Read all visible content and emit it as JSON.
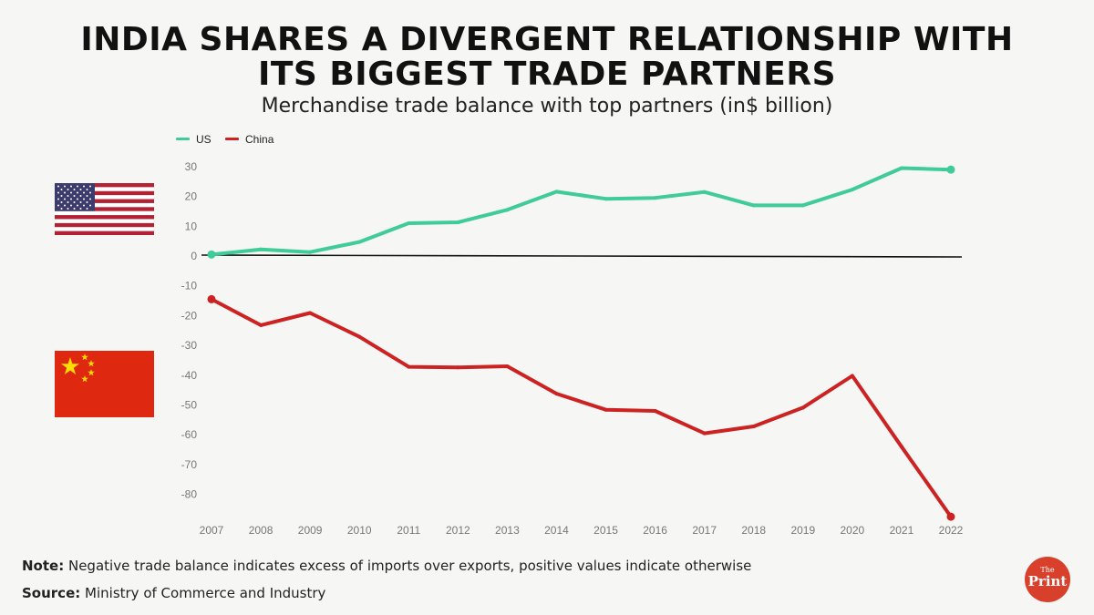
{
  "title_line1": "INDIA SHARES A DIVERGENT RELATIONSHIP WITH",
  "title_line2": "ITS BIGGEST TRADE PARTNERS",
  "subtitle": "Merchandise trade balance with top partners (in$ billion)",
  "note_label": "Note:",
  "note_text": "Negative trade balance indicates excess of imports over exports, positive values indicate otherwise",
  "source_label": "Source:",
  "source_text": "Ministry of Commerce and Industry",
  "logo": {
    "small": "The",
    "big": "Print"
  },
  "colors": {
    "us": "#3fcc98",
    "china": "#cc2222",
    "axis": "#111111",
    "tick": "#777777"
  },
  "icons": {
    "us_flag": "us-flag-icon",
    "china_flag": "china-flag-icon"
  },
  "chart_data": {
    "type": "line",
    "title": "",
    "xlabel": "",
    "ylabel": "",
    "x": [
      "2007",
      "2008",
      "2009",
      "2010",
      "2011",
      "2012",
      "2013",
      "2014",
      "2015",
      "2016",
      "2017",
      "2018",
      "2019",
      "2020",
      "2021",
      "2022"
    ],
    "yticks": [
      30,
      20,
      10,
      0,
      -10,
      -20,
      -30,
      -40,
      -50,
      -60,
      -70,
      -80
    ],
    "ylim": [
      -90,
      32
    ],
    "grid": false,
    "legend_position": "top-left",
    "series": [
      {
        "name": "US",
        "values": [
          0.5,
          2.2,
          1.3,
          4.7,
          11.0,
          11.3,
          15.5,
          21.6,
          19.2,
          19.5,
          21.5,
          17.0,
          17.0,
          22.3,
          29.5,
          29.0
        ]
      },
      {
        "name": "China",
        "values": [
          -14.5,
          -23.2,
          -19.1,
          -27.1,
          -37.2,
          -37.4,
          -37.0,
          -46.2,
          -51.6,
          -52.0,
          -59.5,
          -57.2,
          -50.9,
          -40.2,
          -64.0,
          -87.5
        ]
      }
    ]
  }
}
